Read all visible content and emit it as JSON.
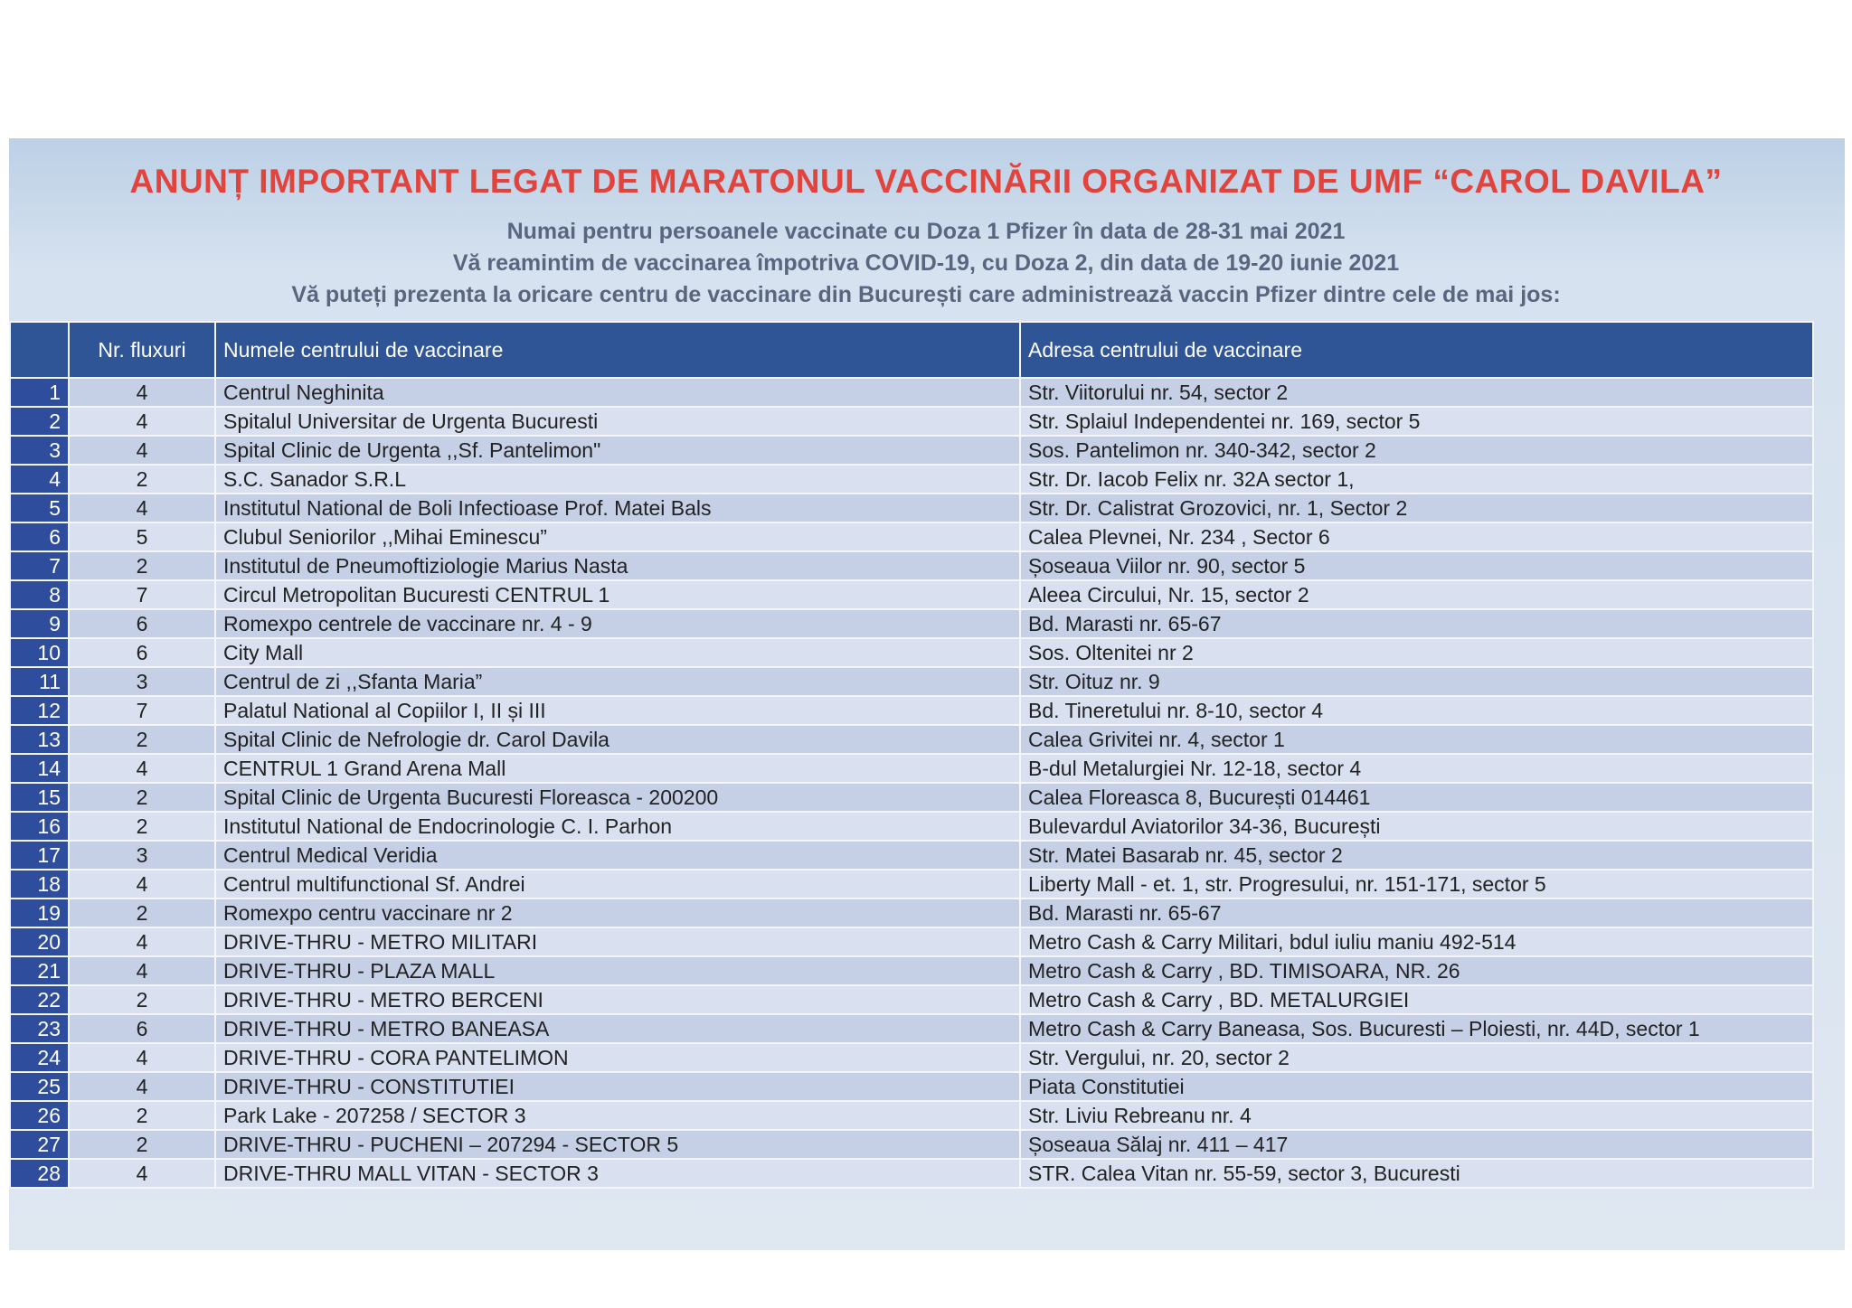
{
  "header": {
    "title": "ANUNȚ IMPORTANT LEGAT DE MARATONUL VACCINĂRII ORGANIZAT DE UMF “CAROL DAVILA”",
    "subtitles": [
      "Numai pentru persoanele vaccinate cu Doza 1 Pfizer în data de 28-31 mai 2021",
      "Vă reamintim de vaccinarea împotriva COVID-19, cu Doza 2, din data de 19-20 iunie 2021",
      "Vă puteți prezenta la oricare centru de vaccinare din București care administrează vaccin Pfizer dintre cele de mai jos:"
    ]
  },
  "table": {
    "columns": [
      "Nr. fluxuri",
      "Numele centrului de vaccinare",
      "Adresa centrului de vaccinare"
    ],
    "rows": [
      [
        1,
        4,
        "Centrul Neghinita",
        "Str. Viitorului nr. 54, sector 2"
      ],
      [
        2,
        4,
        "Spitalul Universitar de Urgenta Bucuresti",
        "Str. Splaiul Independentei nr. 169, sector 5"
      ],
      [
        3,
        4,
        "Spital Clinic de Urgenta ,,Sf. Pantelimon\"",
        "Sos. Pantelimon nr. 340-342, sector 2"
      ],
      [
        4,
        2,
        "S.C. Sanador S.R.L",
        "Str. Dr. Iacob Felix nr. 32A sector 1,"
      ],
      [
        5,
        4,
        "Institutul National de Boli Infectioase Prof. Matei Bals",
        "Str. Dr. Calistrat Grozovici, nr. 1, Sector 2"
      ],
      [
        6,
        5,
        "Clubul Seniorilor ,,Mihai Eminescu”",
        "Calea Plevnei, Nr. 234 , Sector 6"
      ],
      [
        7,
        2,
        "Institutul de Pneumoftiziologie Marius Nasta",
        "Șoseaua Viilor nr. 90, sector 5"
      ],
      [
        8,
        7,
        "Circul Metropolitan Bucuresti CENTRUL 1",
        "Aleea Circului, Nr. 15, sector 2"
      ],
      [
        9,
        6,
        "Romexpo centrele de vaccinare nr. 4 - 9",
        "Bd. Marasti nr. 65-67"
      ],
      [
        10,
        6,
        "City Mall",
        "Sos. Oltenitei nr 2"
      ],
      [
        11,
        3,
        "Centrul de zi ,,Sfanta Maria”",
        "Str. Oituz nr. 9"
      ],
      [
        12,
        7,
        "Palatul National al Copiilor I, II și III",
        "Bd. Tineretului nr. 8-10, sector 4"
      ],
      [
        13,
        2,
        "Spital Clinic de Nefrologie dr. Carol Davila",
        "Calea Grivitei nr. 4, sector 1"
      ],
      [
        14,
        4,
        "CENTRUL 1 Grand Arena Mall",
        "B-dul Metalurgiei Nr. 12-18, sector 4"
      ],
      [
        15,
        2,
        "Spital Clinic de Urgenta Bucuresti Floreasca - 200200",
        "Calea Floreasca 8, București 014461"
      ],
      [
        16,
        2,
        "Institutul National de Endocrinologie C. I. Parhon",
        "Bulevardul Aviatorilor 34-36, București"
      ],
      [
        17,
        3,
        "Centrul Medical Veridia",
        "Str. Matei Basarab nr. 45, sector 2"
      ],
      [
        18,
        4,
        "Centrul multifunctional Sf. Andrei",
        "Liberty Mall - et. 1, str. Progresului, nr. 151-171, sector 5"
      ],
      [
        19,
        2,
        "Romexpo centru vaccinare nr 2",
        "Bd. Marasti nr. 65-67"
      ],
      [
        20,
        4,
        "DRIVE-THRU - METRO MILITARI",
        "Metro Cash & Carry Militari, bdul iuliu maniu 492-514"
      ],
      [
        21,
        4,
        "DRIVE-THRU - PLAZA MALL",
        "Metro Cash & Carry , BD. TIMISOARA, NR. 26"
      ],
      [
        22,
        2,
        "DRIVE-THRU - METRO BERCENI",
        "Metro Cash & Carry , BD. METALURGIEI"
      ],
      [
        23,
        6,
        "DRIVE-THRU - METRO BANEASA",
        "Metro Cash & Carry Baneasa, Sos. Bucuresti – Ploiesti, nr. 44D, sector 1"
      ],
      [
        24,
        4,
        "DRIVE-THRU - CORA PANTELIMON",
        "Str. Vergului, nr. 20, sector 2"
      ],
      [
        25,
        4,
        "DRIVE-THRU - CONSTITUTIEI",
        "Piata Constitutiei"
      ],
      [
        26,
        2,
        "Park Lake - 207258 / SECTOR 3",
        "Str. Liviu Rebreanu nr. 4"
      ],
      [
        27,
        2,
        "DRIVE-THRU - PUCHENI – 207294 - SECTOR 5",
        "Șoseaua Sălaj nr. 411 – 417"
      ],
      [
        28,
        4,
        "DRIVE-THRU MALL VITAN - SECTOR 3",
        "STR. Calea Vitan nr. 55-59, sector 3, Bucuresti"
      ]
    ]
  }
}
